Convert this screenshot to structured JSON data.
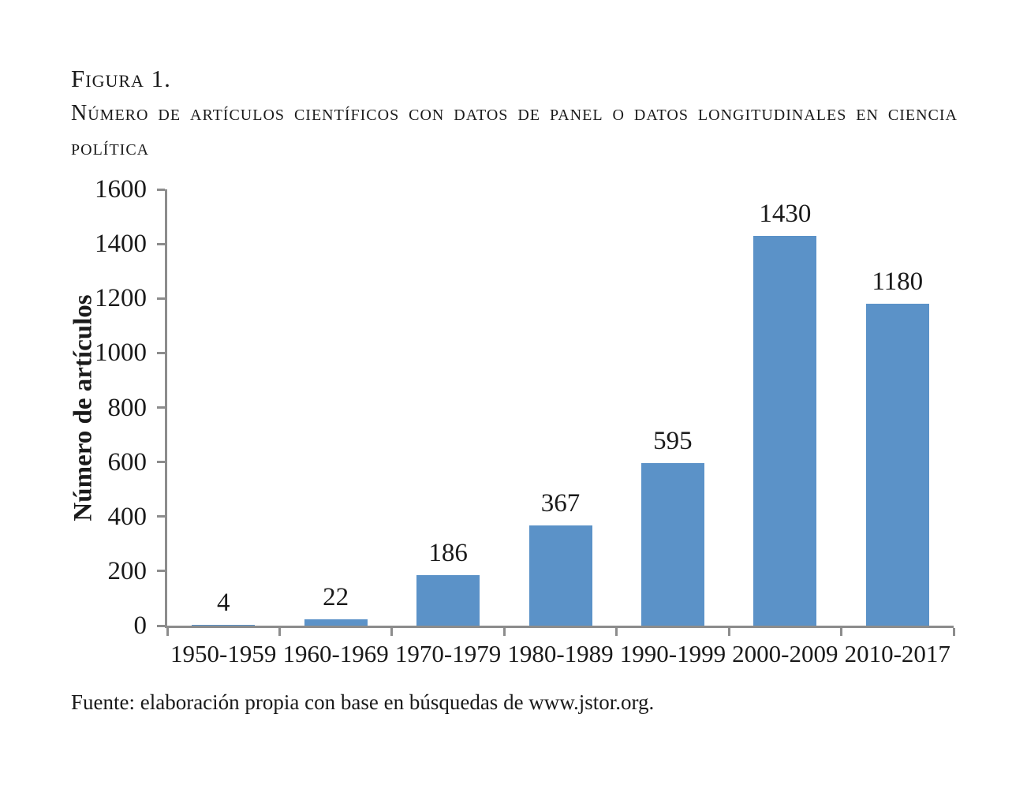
{
  "title": {
    "figure_label": "Figura 1.",
    "caption": "Número de artículos científicos con datos de panel o datos longitudinales en ciencia política"
  },
  "chart_data": {
    "type": "bar",
    "categories": [
      "1950-1959",
      "1960-1969",
      "1970-1979",
      "1980-1989",
      "1990-1999",
      "2000-2009",
      "2010-2017"
    ],
    "values": [
      4,
      22,
      186,
      367,
      595,
      1430,
      1180
    ],
    "title": "Número de artículos científicos con datos de panel o datos longitudinales en ciencia política",
    "xlabel": "",
    "ylabel": "Número de artículos",
    "ylim": [
      0,
      1600
    ],
    "ytick_step": 200,
    "yticks": [
      0,
      200,
      400,
      600,
      800,
      1000,
      1200,
      1400,
      1600
    ],
    "data_labels_shown": true,
    "grid": false,
    "legend": false,
    "bar_color": "#5b92c8",
    "axis_color": "#8c8c8c",
    "text_color": "#1a1a1a"
  },
  "source": {
    "text": "Fuente: elaboración propia con base en búsquedas de www.jstor.org."
  }
}
